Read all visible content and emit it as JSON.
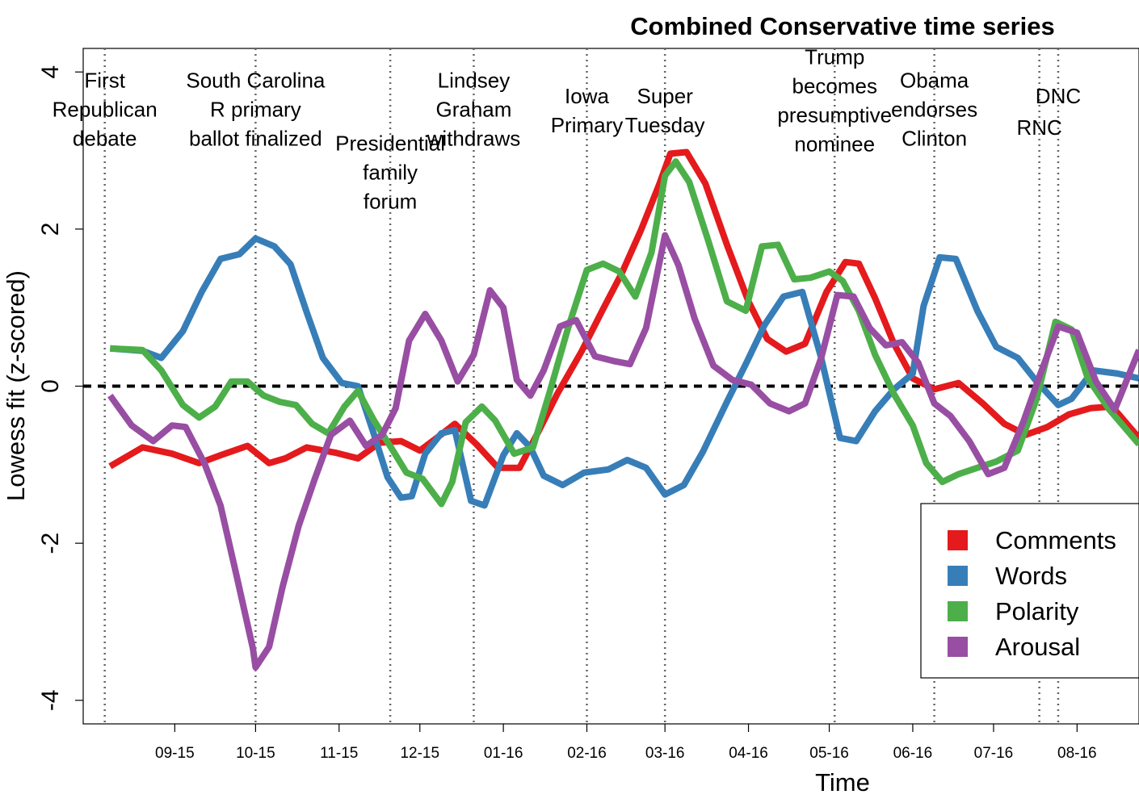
{
  "chart_data": {
    "type": "line",
    "title": "Combined Conservative time series",
    "xlabel": "Time",
    "ylabel": "Lowess fit (z-scored)",
    "xlim": [
      "2015-07-29",
      "2016-08-24"
    ],
    "ylim": [
      -4.3,
      4.3
    ],
    "yticks": [
      -4,
      -2,
      0,
      2,
      4
    ],
    "xticks": [
      {
        "date": "2015-09-01",
        "label": "09-15"
      },
      {
        "date": "2015-10-01",
        "label": "10-15"
      },
      {
        "date": "2015-11-01",
        "label": "11-15"
      },
      {
        "date": "2015-12-01",
        "label": "12-15"
      },
      {
        "date": "2016-01-01",
        "label": "01-16"
      },
      {
        "date": "2016-02-01",
        "label": "02-16"
      },
      {
        "date": "2016-03-01",
        "label": "03-16"
      },
      {
        "date": "2016-04-01",
        "label": "04-16"
      },
      {
        "date": "2016-05-01",
        "label": "05-16"
      },
      {
        "date": "2016-06-01",
        "label": "06-16"
      },
      {
        "date": "2016-07-01",
        "label": "07-16"
      },
      {
        "date": "2016-08-01",
        "label": "08-16"
      }
    ],
    "reference_line": {
      "y": 0,
      "style": "dashed"
    },
    "events": [
      {
        "date": "2015-08-06",
        "label": [
          "First",
          "Republican",
          "debate"
        ],
        "label_y": 3.8
      },
      {
        "date": "2015-10-01",
        "label": [
          "South Carolina",
          "R primary",
          "ballot finalized"
        ],
        "label_y": 3.8
      },
      {
        "date": "2015-11-20",
        "label": [
          "Presidential",
          "family",
          "forum"
        ],
        "label_y": 3.0
      },
      {
        "date": "2015-12-21",
        "label": [
          "Lindsey",
          "Graham",
          "withdraws"
        ],
        "label_y": 3.8
      },
      {
        "date": "2016-02-01",
        "label": [
          "Iowa",
          "Primary"
        ],
        "label_y": 3.6
      },
      {
        "date": "2016-03-01",
        "label": [
          "Super",
          "Tuesday"
        ],
        "label_y": 3.6
      },
      {
        "date": "2016-05-03",
        "label": [
          "Trump",
          "becomes",
          "presumptive",
          "nominee"
        ],
        "label_y": 4.1
      },
      {
        "date": "2016-06-09",
        "label": [
          "Obama",
          "endorses",
          "Clinton"
        ],
        "label_y": 3.8
      },
      {
        "date": "2016-07-18",
        "label": [
          "RNC"
        ],
        "label_y": 3.2
      },
      {
        "date": "2016-07-25",
        "label": [
          "DNC"
        ],
        "label_y": 3.6
      }
    ],
    "series": [
      {
        "name": "Comments",
        "color": "#E41A1C",
        "points": [
          [
            "2015-08-08",
            -1.02
          ],
          [
            "2015-08-20",
            -0.78
          ],
          [
            "2015-08-31",
            -0.86
          ],
          [
            "2015-09-10",
            -0.98
          ],
          [
            "2015-09-18",
            -0.88
          ],
          [
            "2015-09-28",
            -0.76
          ],
          [
            "2015-10-06",
            -0.98
          ],
          [
            "2015-10-12",
            -0.92
          ],
          [
            "2015-10-20",
            -0.78
          ],
          [
            "2015-10-31",
            -0.85
          ],
          [
            "2015-11-08",
            -0.92
          ],
          [
            "2015-11-16",
            -0.72
          ],
          [
            "2015-11-24",
            -0.7
          ],
          [
            "2015-12-01",
            -0.82
          ],
          [
            "2015-12-08",
            -0.64
          ],
          [
            "2015-12-14",
            -0.48
          ],
          [
            "2015-12-22",
            -0.74
          ],
          [
            "2015-12-30",
            -1.04
          ],
          [
            "2016-01-07",
            -1.04
          ],
          [
            "2016-01-14",
            -0.58
          ],
          [
            "2016-01-21",
            -0.1
          ],
          [
            "2016-01-30",
            0.44
          ],
          [
            "2016-02-07",
            0.98
          ],
          [
            "2016-02-14",
            1.44
          ],
          [
            "2016-02-21",
            1.98
          ],
          [
            "2016-02-28",
            2.58
          ],
          [
            "2016-03-03",
            2.96
          ],
          [
            "2016-03-09",
            2.98
          ],
          [
            "2016-03-16",
            2.58
          ],
          [
            "2016-03-24",
            1.8
          ],
          [
            "2016-04-01",
            1.08
          ],
          [
            "2016-04-08",
            0.6
          ],
          [
            "2016-04-15",
            0.44
          ],
          [
            "2016-04-22",
            0.54
          ],
          [
            "2016-04-30",
            1.2
          ],
          [
            "2016-05-07",
            1.58
          ],
          [
            "2016-05-12",
            1.56
          ],
          [
            "2016-05-18",
            1.12
          ],
          [
            "2016-05-25",
            0.54
          ],
          [
            "2016-06-01",
            0.1
          ],
          [
            "2016-06-09",
            -0.04
          ],
          [
            "2016-06-18",
            0.04
          ],
          [
            "2016-06-27",
            -0.22
          ],
          [
            "2016-07-05",
            -0.48
          ],
          [
            "2016-07-13",
            -0.62
          ],
          [
            "2016-07-21",
            -0.52
          ],
          [
            "2016-07-29",
            -0.36
          ],
          [
            "2016-08-06",
            -0.28
          ],
          [
            "2016-08-14",
            -0.26
          ],
          [
            "2016-08-24",
            -0.66
          ]
        ]
      },
      {
        "name": "Words",
        "color": "#377EB8",
        "points": [
          [
            "2015-08-08",
            0.48
          ],
          [
            "2015-08-20",
            0.45
          ],
          [
            "2015-08-27",
            0.36
          ],
          [
            "2015-09-04",
            0.7
          ],
          [
            "2015-09-11",
            1.2
          ],
          [
            "2015-09-18",
            1.62
          ],
          [
            "2015-09-25",
            1.68
          ],
          [
            "2015-10-01",
            1.88
          ],
          [
            "2015-10-08",
            1.78
          ],
          [
            "2015-10-14",
            1.55
          ],
          [
            "2015-10-20",
            0.94
          ],
          [
            "2015-10-26",
            0.36
          ],
          [
            "2015-11-02",
            0.04
          ],
          [
            "2015-11-08",
            0.0
          ],
          [
            "2015-11-14",
            -0.62
          ],
          [
            "2015-11-19",
            -1.16
          ],
          [
            "2015-11-24",
            -1.42
          ],
          [
            "2015-11-28",
            -1.4
          ],
          [
            "2015-12-03",
            -0.86
          ],
          [
            "2015-12-09",
            -0.6
          ],
          [
            "2015-12-14",
            -0.56
          ],
          [
            "2015-12-20",
            -1.46
          ],
          [
            "2015-12-25",
            -1.52
          ],
          [
            "2016-01-01",
            -0.88
          ],
          [
            "2016-01-06",
            -0.6
          ],
          [
            "2016-01-11",
            -0.78
          ],
          [
            "2016-01-16",
            -1.14
          ],
          [
            "2016-01-23",
            -1.26
          ],
          [
            "2016-01-31",
            -1.1
          ],
          [
            "2016-02-09",
            -1.06
          ],
          [
            "2016-02-16",
            -0.94
          ],
          [
            "2016-02-23",
            -1.04
          ],
          [
            "2016-03-01",
            -1.38
          ],
          [
            "2016-03-08",
            -1.26
          ],
          [
            "2016-03-15",
            -0.84
          ],
          [
            "2016-03-24",
            -0.2
          ],
          [
            "2016-03-31",
            0.28
          ],
          [
            "2016-04-07",
            0.78
          ],
          [
            "2016-04-14",
            1.14
          ],
          [
            "2016-04-21",
            1.2
          ],
          [
            "2016-04-28",
            0.36
          ],
          [
            "2016-05-05",
            -0.66
          ],
          [
            "2016-05-11",
            -0.7
          ],
          [
            "2016-05-18",
            -0.32
          ],
          [
            "2016-05-25",
            -0.04
          ],
          [
            "2016-06-01",
            0.16
          ],
          [
            "2016-06-05",
            1.02
          ],
          [
            "2016-06-11",
            1.64
          ],
          [
            "2016-06-17",
            1.62
          ],
          [
            "2016-06-25",
            0.96
          ],
          [
            "2016-07-02",
            0.5
          ],
          [
            "2016-07-10",
            0.36
          ],
          [
            "2016-07-17",
            0.06
          ],
          [
            "2016-07-25",
            -0.24
          ],
          [
            "2016-07-30",
            -0.16
          ],
          [
            "2016-08-07",
            0.2
          ],
          [
            "2016-08-16",
            0.16
          ],
          [
            "2016-08-24",
            0.1
          ]
        ]
      },
      {
        "name": "Polarity",
        "color": "#4DAF4A",
        "points": [
          [
            "2015-08-08",
            0.48
          ],
          [
            "2015-08-20",
            0.46
          ],
          [
            "2015-08-27",
            0.2
          ],
          [
            "2015-09-04",
            -0.24
          ],
          [
            "2015-09-10",
            -0.4
          ],
          [
            "2015-09-16",
            -0.26
          ],
          [
            "2015-09-22",
            0.06
          ],
          [
            "2015-09-28",
            0.06
          ],
          [
            "2015-10-04",
            -0.12
          ],
          [
            "2015-10-10",
            -0.2
          ],
          [
            "2015-10-16",
            -0.24
          ],
          [
            "2015-10-22",
            -0.48
          ],
          [
            "2015-10-28",
            -0.6
          ],
          [
            "2015-11-03",
            -0.26
          ],
          [
            "2015-11-08",
            -0.06
          ],
          [
            "2015-11-14",
            -0.44
          ],
          [
            "2015-11-21",
            -0.82
          ],
          [
            "2015-11-26",
            -1.1
          ],
          [
            "2015-12-02",
            -1.18
          ],
          [
            "2015-12-09",
            -1.5
          ],
          [
            "2015-12-13",
            -1.22
          ],
          [
            "2015-12-18",
            -0.46
          ],
          [
            "2015-12-24",
            -0.26
          ],
          [
            "2015-12-29",
            -0.44
          ],
          [
            "2016-01-05",
            -0.86
          ],
          [
            "2016-01-12",
            -0.78
          ],
          [
            "2016-01-18",
            -0.1
          ],
          [
            "2016-01-25",
            0.74
          ],
          [
            "2016-02-01",
            1.48
          ],
          [
            "2016-02-07",
            1.56
          ],
          [
            "2016-02-13",
            1.46
          ],
          [
            "2016-02-19",
            1.14
          ],
          [
            "2016-02-25",
            1.7
          ],
          [
            "2016-03-01",
            2.68
          ],
          [
            "2016-03-05",
            2.86
          ],
          [
            "2016-03-10",
            2.6
          ],
          [
            "2016-03-17",
            1.86
          ],
          [
            "2016-03-24",
            1.08
          ],
          [
            "2016-03-31",
            0.96
          ],
          [
            "2016-04-06",
            1.78
          ],
          [
            "2016-04-12",
            1.8
          ],
          [
            "2016-04-18",
            1.36
          ],
          [
            "2016-04-24",
            1.38
          ],
          [
            "2016-05-01",
            1.46
          ],
          [
            "2016-05-06",
            1.34
          ],
          [
            "2016-05-12",
            0.96
          ],
          [
            "2016-05-18",
            0.4
          ],
          [
            "2016-05-25",
            -0.1
          ],
          [
            "2016-06-01",
            -0.5
          ],
          [
            "2016-06-06",
            -0.98
          ],
          [
            "2016-06-12",
            -1.22
          ],
          [
            "2016-06-18",
            -1.12
          ],
          [
            "2016-06-25",
            -1.04
          ],
          [
            "2016-07-02",
            -0.96
          ],
          [
            "2016-07-10",
            -0.82
          ],
          [
            "2016-07-17",
            -0.16
          ],
          [
            "2016-07-24",
            0.82
          ],
          [
            "2016-07-30",
            0.72
          ],
          [
            "2016-08-05",
            0.1
          ],
          [
            "2016-08-13",
            -0.3
          ],
          [
            "2016-08-24",
            -0.74
          ]
        ]
      },
      {
        "name": "Arousal",
        "color": "#984EA3",
        "points": [
          [
            "2015-08-08",
            -0.12
          ],
          [
            "2015-08-16",
            -0.5
          ],
          [
            "2015-08-24",
            -0.7
          ],
          [
            "2015-08-31",
            -0.5
          ],
          [
            "2015-09-05",
            -0.52
          ],
          [
            "2015-09-12",
            -0.98
          ],
          [
            "2015-09-18",
            -1.52
          ],
          [
            "2015-09-24",
            -2.42
          ],
          [
            "2015-09-30",
            -3.34
          ],
          [
            "2015-10-01",
            -3.58
          ],
          [
            "2015-10-06",
            -3.32
          ],
          [
            "2015-10-11",
            -2.56
          ],
          [
            "2015-10-17",
            -1.78
          ],
          [
            "2015-10-23",
            -1.18
          ],
          [
            "2015-10-29",
            -0.62
          ],
          [
            "2015-11-05",
            -0.44
          ],
          [
            "2015-11-11",
            -0.76
          ],
          [
            "2015-11-17",
            -0.62
          ],
          [
            "2015-11-22",
            -0.28
          ],
          [
            "2015-11-27",
            0.58
          ],
          [
            "2015-12-03",
            0.92
          ],
          [
            "2015-12-09",
            0.58
          ],
          [
            "2015-12-15",
            0.06
          ],
          [
            "2015-12-21",
            0.4
          ],
          [
            "2015-12-27",
            1.22
          ],
          [
            "2016-01-01",
            1.0
          ],
          [
            "2016-01-06",
            0.08
          ],
          [
            "2016-01-11",
            -0.12
          ],
          [
            "2016-01-16",
            0.2
          ],
          [
            "2016-01-22",
            0.76
          ],
          [
            "2016-01-28",
            0.84
          ],
          [
            "2016-02-04",
            0.38
          ],
          [
            "2016-02-11",
            0.32
          ],
          [
            "2016-02-17",
            0.28
          ],
          [
            "2016-02-23",
            0.74
          ],
          [
            "2016-03-01",
            1.92
          ],
          [
            "2016-03-06",
            1.54
          ],
          [
            "2016-03-12",
            0.86
          ],
          [
            "2016-03-19",
            0.26
          ],
          [
            "2016-03-26",
            0.08
          ],
          [
            "2016-04-02",
            0.02
          ],
          [
            "2016-04-09",
            -0.22
          ],
          [
            "2016-04-16",
            -0.32
          ],
          [
            "2016-04-22",
            -0.22
          ],
          [
            "2016-04-28",
            0.36
          ],
          [
            "2016-05-04",
            1.16
          ],
          [
            "2016-05-10",
            1.14
          ],
          [
            "2016-05-16",
            0.74
          ],
          [
            "2016-05-22",
            0.52
          ],
          [
            "2016-05-28",
            0.56
          ],
          [
            "2016-06-03",
            0.3
          ],
          [
            "2016-06-09",
            -0.22
          ],
          [
            "2016-06-15",
            -0.38
          ],
          [
            "2016-06-22",
            -0.7
          ],
          [
            "2016-06-29",
            -1.12
          ],
          [
            "2016-07-05",
            -1.04
          ],
          [
            "2016-07-12",
            -0.46
          ],
          [
            "2016-07-18",
            0.12
          ],
          [
            "2016-07-25",
            0.76
          ],
          [
            "2016-08-01",
            0.68
          ],
          [
            "2016-08-08",
            0.06
          ],
          [
            "2016-08-15",
            -0.3
          ],
          [
            "2016-08-24",
            0.46
          ]
        ]
      }
    ],
    "legend": {
      "position": "bottom-right",
      "entries": [
        "Comments",
        "Words",
        "Polarity",
        "Arousal"
      ]
    }
  }
}
